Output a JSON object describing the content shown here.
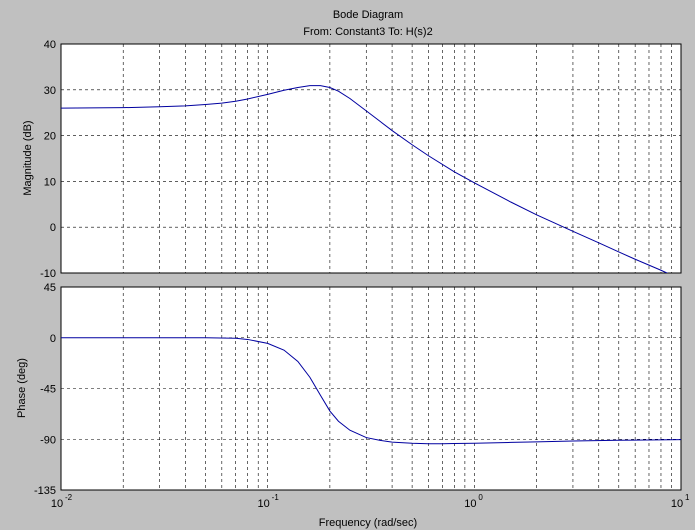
{
  "title": "Bode Diagram",
  "subtitle": "From: Constant3  To: H(s)2",
  "colors": {
    "figure_bg": "#c0c0c0",
    "axes_bg": "#ffffff",
    "curve": "#0000a0",
    "grid": "#000000"
  },
  "chart_data": [
    {
      "type": "line",
      "title": "Bode Diagram",
      "subtitle": "From: Constant3  To: H(s)2",
      "xlabel": "Frequency  (rad/sec)",
      "ylabel": "Magnitude (dB)",
      "xscale": "log",
      "xlim": [
        0.01,
        10
      ],
      "ylim": [
        -10,
        40
      ],
      "yticks": [
        -10,
        0,
        10,
        20,
        30,
        40
      ],
      "grid": true,
      "series": [
        {
          "x": [
            0.01,
            0.02,
            0.03,
            0.04,
            0.05,
            0.06,
            0.07,
            0.08,
            0.1,
            0.12,
            0.14,
            0.16,
            0.18,
            0.2,
            0.22,
            0.25,
            0.3,
            0.35,
            0.4,
            0.5,
            0.6,
            0.8,
            1,
            1.5,
            2,
            3,
            4,
            5,
            6,
            8,
            10
          ],
          "y": [
            26,
            26.1,
            26.3,
            26.5,
            26.8,
            27.1,
            27.5,
            28.0,
            29.0,
            29.9,
            30.5,
            30.9,
            30.9,
            30.5,
            29.7,
            28.1,
            25.4,
            23.1,
            21.1,
            18.0,
            15.6,
            12.1,
            9.7,
            5.5,
            2.7,
            -0.9,
            -3.4,
            -5.4,
            -7.0,
            -9.4,
            -11.4
          ]
        }
      ]
    },
    {
      "type": "line",
      "xlabel": "Frequency  (rad/sec)",
      "ylabel": "Phase (deg)",
      "xscale": "log",
      "xlim": [
        0.01,
        10
      ],
      "ylim": [
        -135,
        45
      ],
      "yticks": [
        -135,
        -90,
        -45,
        0,
        45
      ],
      "xtick_labels": [
        "10^-2",
        "10^-1",
        "10^0",
        "10^1"
      ],
      "grid": true,
      "series": [
        {
          "x": [
            0.01,
            0.03,
            0.05,
            0.07,
            0.08,
            0.1,
            0.12,
            0.14,
            0.16,
            0.18,
            0.2,
            0.22,
            0.25,
            0.3,
            0.35,
            0.4,
            0.5,
            0.6,
            0.7,
            0.8,
            1,
            1.5,
            2,
            3,
            5,
            10
          ],
          "y": [
            0,
            0,
            0,
            -0.5,
            -1.5,
            -5,
            -11,
            -21,
            -35,
            -51,
            -65,
            -74,
            -82,
            -88.5,
            -91,
            -92.5,
            -93.5,
            -94,
            -94,
            -93.8,
            -93.5,
            -92.8,
            -92.3,
            -91.6,
            -90.9,
            -90.3
          ]
        }
      ]
    }
  ]
}
